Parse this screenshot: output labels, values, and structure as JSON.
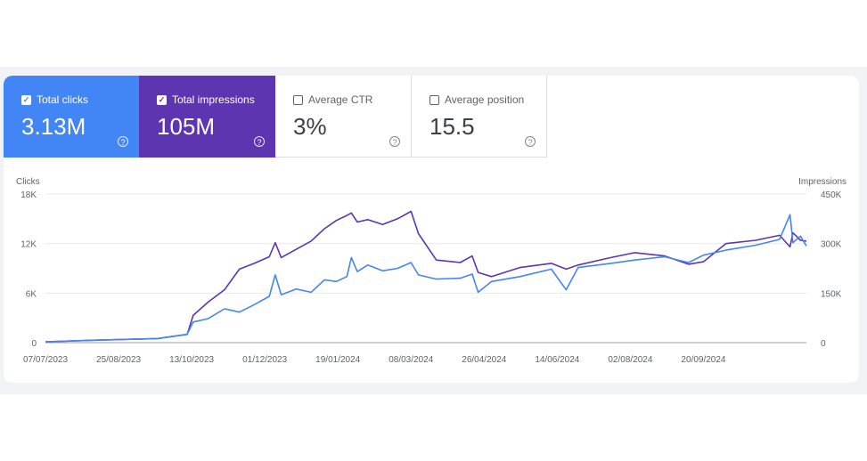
{
  "metrics": [
    {
      "label": "Total clicks",
      "value": "3.13M",
      "checked": true,
      "color": "#4285f4",
      "icon": "help-icon"
    },
    {
      "label": "Total impressions",
      "value": "105M",
      "checked": true,
      "color": "#5e35b1",
      "icon": "help-icon"
    },
    {
      "label": "Average CTR",
      "value": "3%",
      "checked": false,
      "color": "#ffffff",
      "icon": "help-icon"
    },
    {
      "label": "Average position",
      "value": "15.5",
      "checked": false,
      "color": "#ffffff",
      "icon": "help-icon"
    }
  ],
  "chart_data": {
    "type": "line",
    "left_axis": {
      "title": "Clicks",
      "ticks": [
        "0",
        "6K",
        "12K",
        "18K"
      ],
      "range": [
        0,
        18000
      ]
    },
    "right_axis": {
      "title": "Impressions",
      "ticks": [
        "0",
        "150K",
        "300K",
        "450K"
      ],
      "range": [
        0,
        450000
      ]
    },
    "x_ticks": [
      "07/07/2023",
      "25/08/2023",
      "13/10/2023",
      "01/12/2023",
      "19/01/2024",
      "08/03/2024",
      "26/04/2024",
      "14/06/2024",
      "02/08/2024",
      "20/09/2024"
    ],
    "x_range": [
      "2023-07-07",
      "2024-11-28"
    ],
    "grid": true,
    "series": [
      {
        "name": "Clicks",
        "axis": "left",
        "color": "#4285f4",
        "points": [
          [
            "2023-07-07",
            100
          ],
          [
            "2023-08-10",
            300
          ],
          [
            "2023-09-20",
            500
          ],
          [
            "2023-10-10",
            1000
          ],
          [
            "2023-10-14",
            2500
          ],
          [
            "2023-10-24",
            2900
          ],
          [
            "2023-11-04",
            4100
          ],
          [
            "2023-11-14",
            3700
          ],
          [
            "2023-11-24",
            4600
          ],
          [
            "2023-12-04",
            5600
          ],
          [
            "2023-12-08",
            8200
          ],
          [
            "2023-12-12",
            5800
          ],
          [
            "2023-12-22",
            6500
          ],
          [
            "2024-01-01",
            6100
          ],
          [
            "2024-01-10",
            7600
          ],
          [
            "2024-01-18",
            7400
          ],
          [
            "2024-01-25",
            8000
          ],
          [
            "2024-01-28",
            10300
          ],
          [
            "2024-02-01",
            8600
          ],
          [
            "2024-02-08",
            9400
          ],
          [
            "2024-02-18",
            8700
          ],
          [
            "2024-02-28",
            9000
          ],
          [
            "2024-03-08",
            9700
          ],
          [
            "2024-03-13",
            8200
          ],
          [
            "2024-03-25",
            7700
          ],
          [
            "2024-04-10",
            7800
          ],
          [
            "2024-04-18",
            8300
          ],
          [
            "2024-04-22",
            6100
          ],
          [
            "2024-05-01",
            7400
          ],
          [
            "2024-05-20",
            8000
          ],
          [
            "2024-06-10",
            8900
          ],
          [
            "2024-06-20",
            6400
          ],
          [
            "2024-06-28",
            9100
          ],
          [
            "2024-07-20",
            9600
          ],
          [
            "2024-08-05",
            10000
          ],
          [
            "2024-08-25",
            10400
          ],
          [
            "2024-09-10",
            9700
          ],
          [
            "2024-09-20",
            10600
          ],
          [
            "2024-10-05",
            11200
          ],
          [
            "2024-10-25",
            11800
          ],
          [
            "2024-11-10",
            12500
          ],
          [
            "2024-11-17",
            15500
          ],
          [
            "2024-11-19",
            12100
          ],
          [
            "2024-11-24",
            12900
          ],
          [
            "2024-11-28",
            11700
          ]
        ]
      },
      {
        "name": "Impressions",
        "axis": "right",
        "color": "#5e35b1",
        "points": [
          [
            "2023-07-07",
            2500
          ],
          [
            "2023-08-10",
            7500
          ],
          [
            "2023-09-20",
            12500
          ],
          [
            "2023-10-10",
            25000
          ],
          [
            "2023-10-14",
            82500
          ],
          [
            "2023-10-24",
            122500
          ],
          [
            "2023-11-04",
            160000
          ],
          [
            "2023-11-14",
            222500
          ],
          [
            "2023-11-24",
            240000
          ],
          [
            "2023-12-04",
            260000
          ],
          [
            "2023-12-08",
            302500
          ],
          [
            "2023-12-12",
            257500
          ],
          [
            "2023-12-22",
            282500
          ],
          [
            "2024-01-01",
            307500
          ],
          [
            "2024-01-10",
            345000
          ],
          [
            "2024-01-18",
            370000
          ],
          [
            "2024-01-25",
            385000
          ],
          [
            "2024-01-28",
            392500
          ],
          [
            "2024-02-01",
            365000
          ],
          [
            "2024-02-08",
            372500
          ],
          [
            "2024-02-18",
            357500
          ],
          [
            "2024-02-28",
            375000
          ],
          [
            "2024-03-08",
            397500
          ],
          [
            "2024-03-13",
            330000
          ],
          [
            "2024-03-25",
            250000
          ],
          [
            "2024-04-10",
            242500
          ],
          [
            "2024-04-18",
            262500
          ],
          [
            "2024-04-22",
            212500
          ],
          [
            "2024-05-01",
            200000
          ],
          [
            "2024-05-20",
            227500
          ],
          [
            "2024-06-10",
            240000
          ],
          [
            "2024-06-20",
            222500
          ],
          [
            "2024-06-28",
            235000
          ],
          [
            "2024-07-20",
            257500
          ],
          [
            "2024-08-05",
            272500
          ],
          [
            "2024-08-25",
            262500
          ],
          [
            "2024-09-10",
            237500
          ],
          [
            "2024-09-20",
            245000
          ],
          [
            "2024-10-05",
            300000
          ],
          [
            "2024-10-25",
            310000
          ],
          [
            "2024-11-10",
            325000
          ],
          [
            "2024-11-17",
            290000
          ],
          [
            "2024-11-19",
            332500
          ],
          [
            "2024-11-24",
            310000
          ],
          [
            "2024-11-28",
            307500
          ]
        ]
      }
    ]
  }
}
